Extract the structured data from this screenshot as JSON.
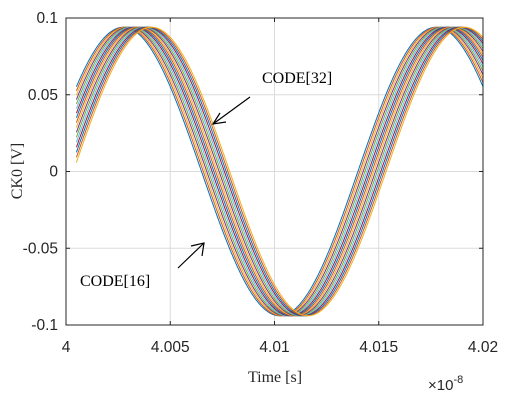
{
  "chart_data": {
    "type": "line",
    "title": "",
    "xlabel": "Time [s]",
    "ylabel": "CK0 [V]",
    "x_exponent_label": "×10",
    "x_exponent_power": "-8",
    "xlim": [
      4.0,
      4.02
    ],
    "ylim": [
      -0.1,
      0.1
    ],
    "x_ticks": [
      4.0,
      4.005,
      4.01,
      4.015,
      4.02
    ],
    "x_tick_labels": [
      "4",
      "4.005",
      "4.01",
      "4.015",
      "4.02"
    ],
    "y_ticks": [
      -0.1,
      -0.05,
      0,
      0.05,
      0.1
    ],
    "y_tick_labels": [
      "-0.1",
      "-0.05",
      "0",
      "0.05",
      "0.1"
    ],
    "grid": true,
    "data_start_x": 4.0005,
    "series_count": 17,
    "amplitude": 0.094,
    "period": 0.015,
    "first_peak_x": 4.00275,
    "last_peak_x": 4.0041,
    "series_colors": [
      "#0072BD",
      "#D95319",
      "#EDB120",
      "#7E2F8E",
      "#77AC30",
      "#4DBEEE",
      "#A2142F"
    ],
    "annotations": [
      {
        "text": "CODE[32]"
      },
      {
        "text": "CODE[16]"
      }
    ]
  }
}
